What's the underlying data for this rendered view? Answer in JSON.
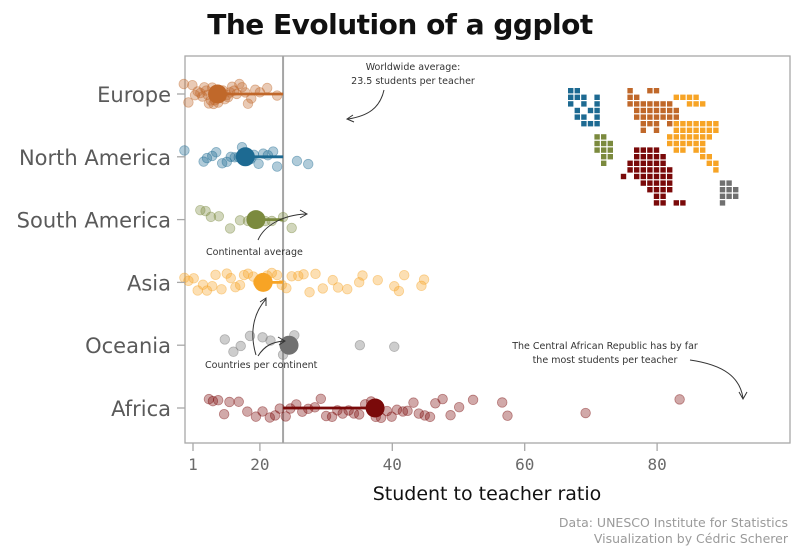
{
  "title": "The Evolution of a ggplot",
  "chart_data": {
    "type": "scatter",
    "xlabel": "Student to teacher ratio",
    "ylabel": "",
    "xlim": [
      0,
      90
    ],
    "xticks": [
      1,
      20,
      40,
      60,
      80
    ],
    "grid": false,
    "categories": [
      "Europe",
      "North America",
      "South America",
      "Asia",
      "Oceania",
      "Africa"
    ],
    "colors": {
      "Europe": "#c0682a",
      "North America": "#1d6a92",
      "South America": "#7b8a3e",
      "Asia": "#f7a425",
      "Oceania": "#707070",
      "Africa": "#7a0a0a"
    },
    "world_average": 23.5,
    "continent_averages": {
      "Europe": 13.6,
      "North America": 17.8,
      "South America": 19.4,
      "Asia": 20.5,
      "Oceania": 24.4,
      "Africa": 37.4
    },
    "countries": {
      "Europe": [
        8.5,
        9.2,
        9.8,
        10.2,
        10.6,
        11,
        11.3,
        11.6,
        11.9,
        12.1,
        12.3,
        12.6,
        12.8,
        13,
        13.2,
        13.4,
        13.7,
        13.9,
        14.2,
        14.4,
        14.7,
        15,
        15.2,
        15.5,
        15.8,
        16.1,
        16.5,
        16.9,
        17.3,
        17.8,
        18.2,
        18.7,
        19.3,
        20,
        21.1,
        22.6
      ],
      "North America": [
        8.6,
        11.5,
        12,
        12.8,
        13.4,
        14.3,
        15,
        15.6,
        16.2,
        16.8,
        17.3,
        18,
        18.6,
        19.1,
        19.8,
        20.5,
        21.2,
        22,
        22.6,
        25.6,
        27.3
      ],
      "South America": [
        11,
        11.8,
        12.6,
        13.8,
        15.5,
        17,
        18.2,
        19.6,
        20.8,
        21.8,
        23.5,
        24.8
      ],
      "Asia": [
        8.6,
        9.2,
        10,
        10.6,
        11.4,
        12,
        12.8,
        13.3,
        14.2,
        15,
        15.6,
        16.3,
        17,
        17.6,
        18.2,
        19,
        19.7,
        20.4,
        21.1,
        21.8,
        22.6,
        23.3,
        24,
        24.8,
        25.8,
        26.6,
        27.5,
        28.4,
        29.5,
        31,
        31.8,
        33.2,
        35,
        35.5,
        37.8,
        40.3,
        41,
        41.8,
        44.4,
        44.8
      ],
      "Oceania": [
        14.7,
        16,
        17.1,
        18.5,
        20.4,
        21.6,
        23.5,
        24.6,
        25.2,
        35.1,
        40.3
      ],
      "Africa": [
        12.3,
        12.9,
        13.7,
        14.6,
        15.4,
        16.8,
        18.1,
        19.4,
        20.4,
        21.5,
        22.3,
        23,
        23.9,
        24.6,
        25.5,
        26.4,
        27.3,
        28.3,
        29.2,
        30,
        30.9,
        31.7,
        32.5,
        33.4,
        34.2,
        35,
        35.9,
        36.8,
        37.5,
        38.3,
        39.2,
        39.9,
        40.7,
        41.6,
        42.3,
        43.2,
        44,
        44.9,
        45.7,
        46.5,
        47.6,
        48.8,
        50.1,
        52.2,
        56.6,
        57.4,
        69.2,
        83.4
      ]
    },
    "annotations": [
      {
        "lines": [
          "Worldwide average:",
          "23.5 students per teacher"
        ]
      },
      {
        "lines": [
          "Continental average"
        ]
      },
      {
        "lines": [
          "Countries per continent"
        ]
      },
      {
        "lines": [
          "The Central African Republic has by far",
          "the most students per teacher"
        ]
      }
    ]
  },
  "caption": [
    "Data: UNESCO Institute for Statistics",
    "Visualization by Cédric Scherer"
  ]
}
